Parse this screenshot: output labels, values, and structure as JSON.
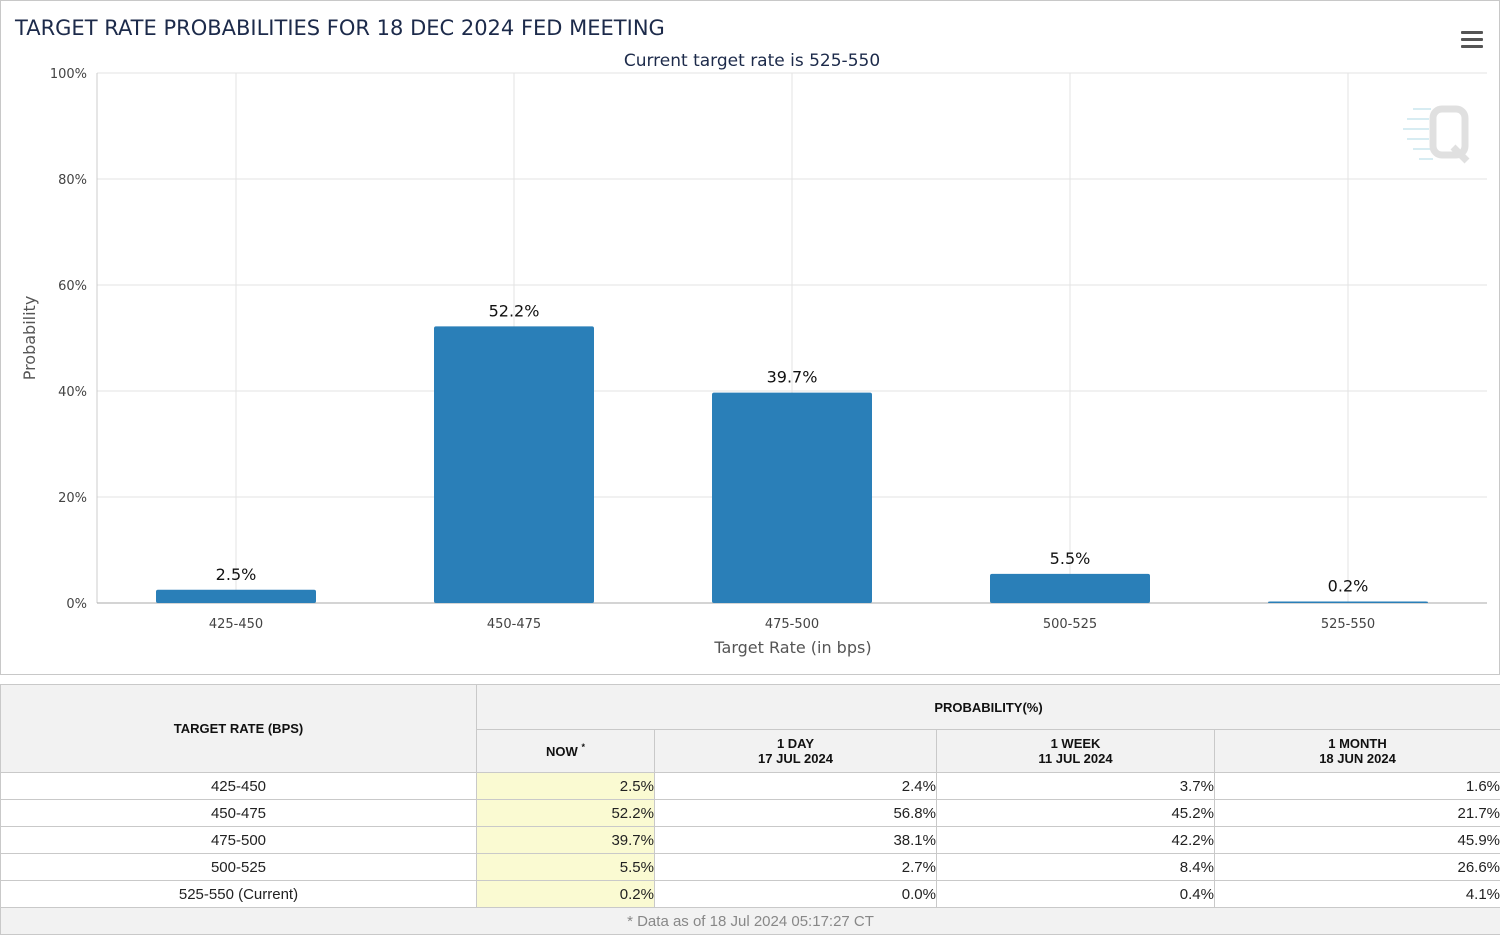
{
  "chart_data": {
    "type": "bar",
    "title": "TARGET RATE PROBABILITIES FOR 18 DEC 2024 FED MEETING",
    "subtitle": "Current target rate is 525-550",
    "xlabel": "Target Rate (in bps)",
    "ylabel": "Probability",
    "categories": [
      "425-450",
      "450-475",
      "475-500",
      "500-525",
      "525-550"
    ],
    "values": [
      2.5,
      52.2,
      39.7,
      5.5,
      0.2
    ],
    "data_labels": [
      "2.5%",
      "52.2%",
      "39.7%",
      "5.5%",
      "0.2%"
    ],
    "ylim": [
      0,
      100
    ],
    "yticks": [
      0,
      20,
      40,
      60,
      80,
      100
    ],
    "ytick_labels": [
      "0%",
      "20%",
      "40%",
      "60%",
      "80%",
      "100%"
    ],
    "grid": true,
    "bar_color": "#2a7fb8",
    "legend": "none"
  },
  "menu": {
    "icon": "hamburger-menu-icon"
  },
  "watermark": {
    "icon": "q-logo-icon"
  },
  "table": {
    "rate_header": "TARGET RATE (BPS)",
    "probability_header": "PROBABILITY(%)",
    "columns": [
      {
        "line1": "NOW",
        "line2": "",
        "star": "*"
      },
      {
        "line1": "1 DAY",
        "line2": "17 JUL 2024"
      },
      {
        "line1": "1 WEEK",
        "line2": "11 JUL 2024"
      },
      {
        "line1": "1 MONTH",
        "line2": "18 JUN 2024"
      }
    ],
    "rows": [
      {
        "rate": "425-450",
        "now": "2.5%",
        "day": "2.4%",
        "week": "3.7%",
        "month": "1.6%"
      },
      {
        "rate": "450-475",
        "now": "52.2%",
        "day": "56.8%",
        "week": "45.2%",
        "month": "21.7%"
      },
      {
        "rate": "475-500",
        "now": "39.7%",
        "day": "38.1%",
        "week": "42.2%",
        "month": "45.9%"
      },
      {
        "rate": "500-525",
        "now": "5.5%",
        "day": "2.7%",
        "week": "8.4%",
        "month": "26.6%"
      },
      {
        "rate": "525-550 (Current)",
        "now": "0.2%",
        "day": "0.0%",
        "week": "0.4%",
        "month": "4.1%"
      }
    ],
    "footnote": "* Data as of 18 Jul 2024 05:17:27 CT",
    "now_highlight_color": "#fafad2"
  }
}
